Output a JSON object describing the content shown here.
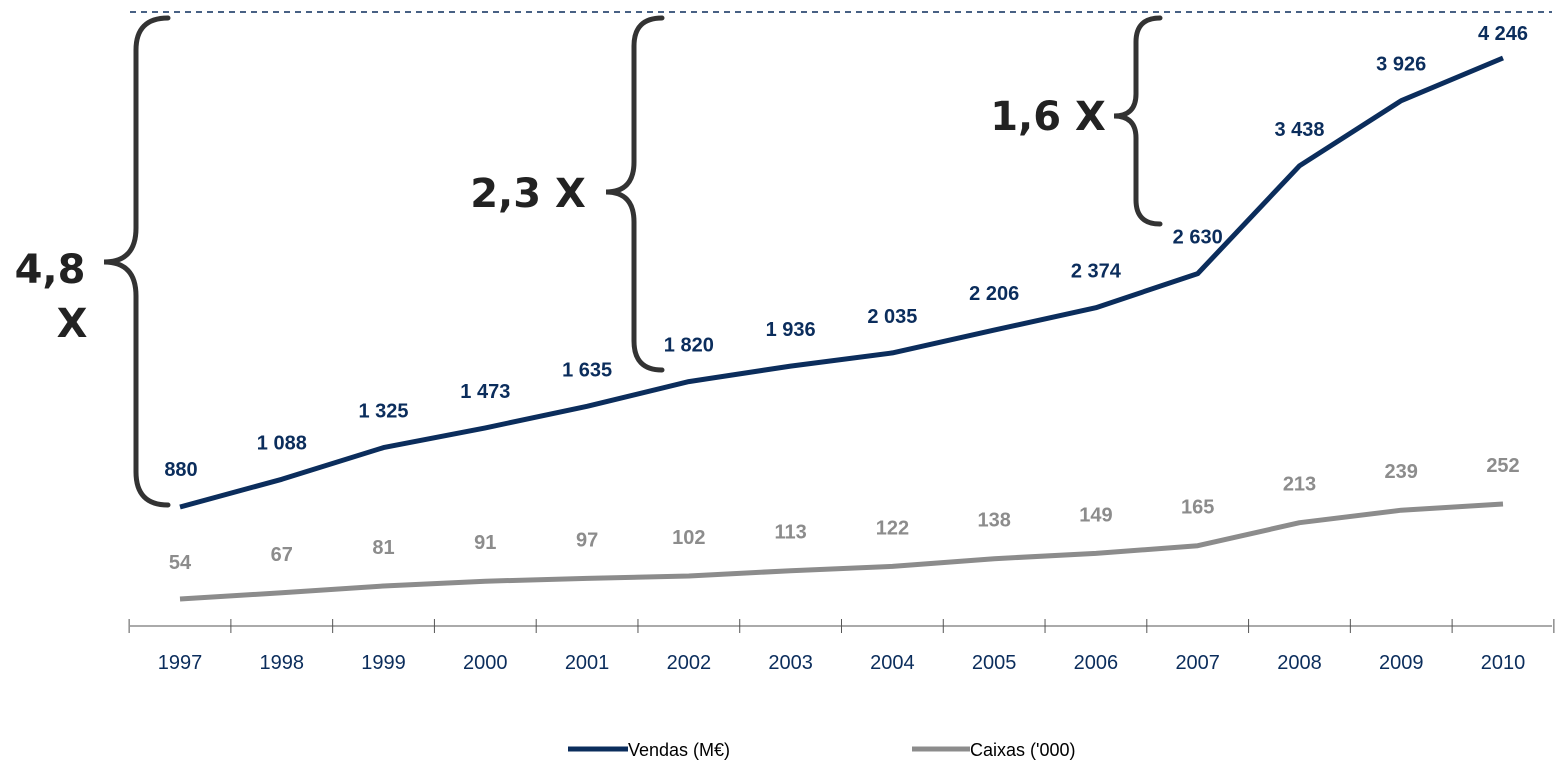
{
  "colors": {
    "vendas": "#0b2d5c",
    "caixas": "#8c8c8c",
    "axis_labels": "#0b2d5c",
    "brackets": "#333333"
  },
  "annotations": {
    "mult_48_line1": "4,8",
    "mult_48_line2": "X",
    "mult_23": "2,3 X",
    "mult_16": "1,6 X"
  },
  "legend": {
    "vendas_label": "Vendas (M€)",
    "caixas_label": "Caixas ('000)"
  },
  "chart_data": {
    "type": "line",
    "categories": [
      "1997",
      "1998",
      "1999",
      "2000",
      "2001",
      "2002",
      "2003",
      "2004",
      "2005",
      "2006",
      "2007",
      "2008",
      "2009",
      "2010"
    ],
    "series": [
      {
        "name": "Vendas (M€)",
        "values": [
          880,
          1088,
          1325,
          1473,
          1635,
          1820,
          1936,
          2035,
          2206,
          2374,
          2630,
          3438,
          3926,
          4246
        ],
        "labels": [
          "880",
          "1 088",
          "1 325",
          "1 473",
          "1 635",
          "1 820",
          "1 936",
          "2 035",
          "2 206",
          "2 374",
          "2 630",
          "3 438",
          "3 926",
          "4 246"
        ]
      },
      {
        "name": "Caixas ('000)",
        "values": [
          54,
          67,
          81,
          91,
          97,
          102,
          113,
          122,
          138,
          149,
          165,
          213,
          239,
          252
        ],
        "labels": [
          "54",
          "67",
          "81",
          "91",
          "97",
          "102",
          "113",
          "122",
          "138",
          "149",
          "165",
          "213",
          "239",
          "252"
        ]
      }
    ],
    "legend_position": "bottom",
    "grid": false
  }
}
